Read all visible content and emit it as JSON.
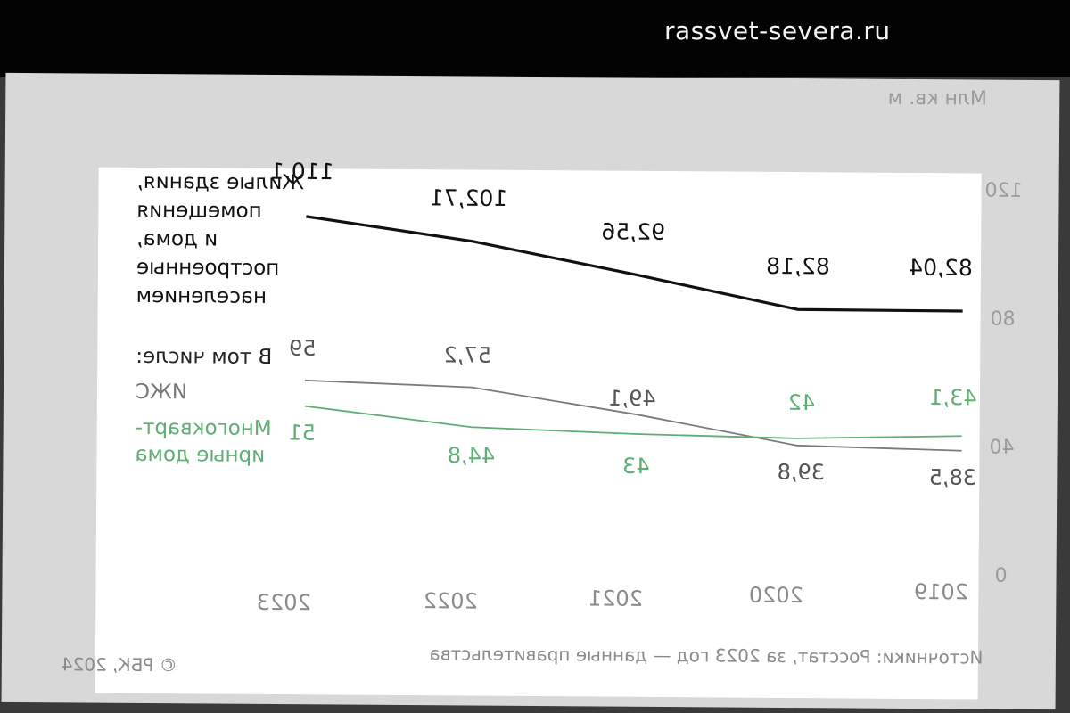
{
  "site": {
    "name": "rassvet-severa.ru"
  },
  "chart_data": {
    "type": "line",
    "ylabel": "Млн кв. м",
    "ylim": [
      0,
      120
    ],
    "yticks": [
      "0",
      "40",
      "80",
      "120"
    ],
    "categories": [
      "2019",
      "2020",
      "2021",
      "2022",
      "2023"
    ],
    "series": [
      {
        "name": "Жилые здания, помещения и дома, построенные населением",
        "values": [
          82.04,
          82.18,
          92.56,
          102.71,
          110.1
        ],
        "labels": [
          "82,04",
          "82,18",
          "92,56",
          "102,71",
          "110,1"
        ],
        "color": "#111111"
      },
      {
        "name": "ИЖС",
        "values": [
          38.5,
          39.8,
          49.1,
          57.2,
          59
        ],
        "labels": [
          "38,5",
          "39,8",
          "49,1",
          "57,2",
          "59"
        ],
        "color": "#7a7a7a"
      },
      {
        "name": "Многоквартирные дома",
        "values": [
          43.1,
          42,
          43,
          44.8,
          51
        ],
        "labels": [
          "43,1",
          "42",
          "43",
          "44,8",
          "51"
        ],
        "color": "#5fae75"
      }
    ],
    "legend": {
      "main_lines": [
        "Жилые здания,",
        "помещения",
        "и дома,",
        "построенные",
        "населением"
      ],
      "subheading": "В том числе:",
      "izhs": "ИЖС",
      "mkd_lines": [
        "Многокварт-",
        "ирные дома"
      ]
    },
    "source": "Источники: Росстат, за 2023 год — данные правительства",
    "copyright": "© РБК, 2024",
    "grid": false,
    "mirrored": true
  }
}
